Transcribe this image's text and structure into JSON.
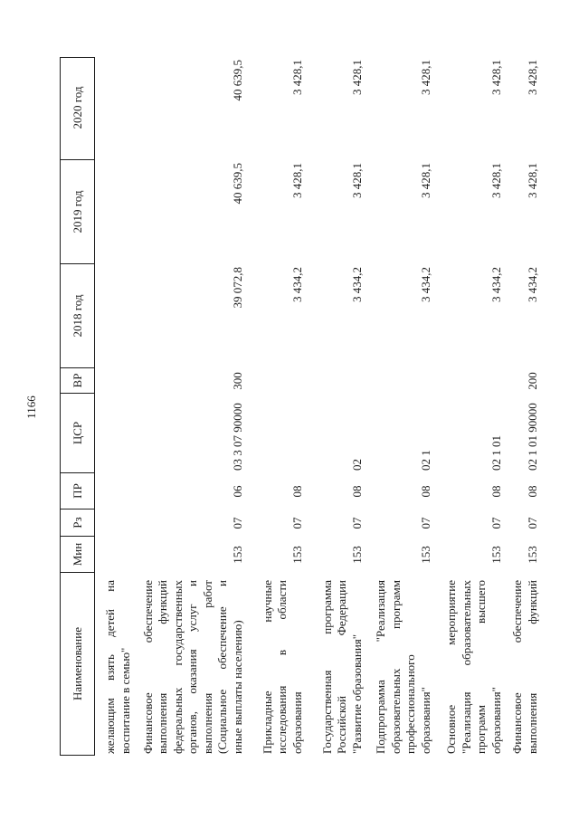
{
  "page_number": "1166",
  "colors": {
    "ink": "#1d1d1d",
    "background": "#ffffff"
  },
  "table": {
    "headers": [
      "Наименование",
      "Мин",
      "Рз",
      "ПР",
      "ЦСР",
      "ВР",
      "2018 год",
      "2019 год",
      "2020 год"
    ],
    "rows": [
      {
        "name_lines": [
          [
            "желающим",
            "взять",
            "детей",
            "на"
          ],
          "воспитание в семью\""
        ],
        "min": "",
        "rz": "",
        "pr": "",
        "csr": "",
        "vr": "",
        "y2018": "",
        "y2019": "",
        "y2020": ""
      },
      {
        "name_lines": [
          [
            "Финансовое",
            "обеспечение"
          ],
          [
            "выполнения",
            "функций"
          ],
          [
            "федеральных",
            "государственных"
          ],
          [
            "органов,",
            "оказания",
            "услуг",
            "и"
          ],
          [
            "выполнения",
            "работ"
          ],
          [
            "(Социальное",
            "обеспечение",
            "и"
          ],
          "иные выплаты населению)"
        ],
        "min": "153",
        "rz": "07",
        "pr": "06",
        "csr": "03 3 07 90000",
        "vr": "300",
        "y2018": "39 072,8",
        "y2019": "40 639,5",
        "y2020": "40 639,5"
      },
      {
        "name_lines": [
          [
            "Прикладные",
            "научные"
          ],
          [
            "исследования",
            "в",
            "области"
          ],
          "образования"
        ],
        "min": "153",
        "rz": "07",
        "pr": "08",
        "csr": "",
        "vr": "",
        "y2018": "3 434,2",
        "y2019": "3 428,1",
        "y2020": "3 428,1"
      },
      {
        "name_lines": [
          [
            "Государственная",
            "программа"
          ],
          [
            "Российской",
            "Федерации"
          ],
          "\"Развитие образования\""
        ],
        "min": "153",
        "rz": "07",
        "pr": "08",
        "csr": "02",
        "vr": "",
        "y2018": "3 434,2",
        "y2019": "3 428,1",
        "y2020": "3 428,1"
      },
      {
        "name_lines": [
          [
            "Подпрограмма",
            "\"Реализация"
          ],
          [
            "образовательных",
            "программ"
          ],
          "профессионального",
          "образования\""
        ],
        "min": "153",
        "rz": "07",
        "pr": "08",
        "csr": "02 1",
        "vr": "",
        "y2018": "3 434,2",
        "y2019": "3 428,1",
        "y2020": "3 428,1"
      },
      {
        "name_lines": [
          [
            "Основное",
            "мероприятие"
          ],
          [
            "\"Реализация",
            "образовательных"
          ],
          [
            "программ",
            "высшего"
          ],
          "образования\""
        ],
        "min": "153",
        "rz": "07",
        "pr": "08",
        "csr": "02 1 01",
        "vr": "",
        "y2018": "3 434,2",
        "y2019": "3 428,1",
        "y2020": "3 428,1"
      },
      {
        "name_lines": [
          [
            "Финансовое",
            "обеспечение"
          ],
          [
            "выполнения",
            "функций"
          ]
        ],
        "min": "153",
        "rz": "07",
        "pr": "08",
        "csr": "02 1 01 90000",
        "vr": "200",
        "y2018": "3 434,2",
        "y2019": "3 428,1",
        "y2020": "3 428,1"
      }
    ]
  }
}
